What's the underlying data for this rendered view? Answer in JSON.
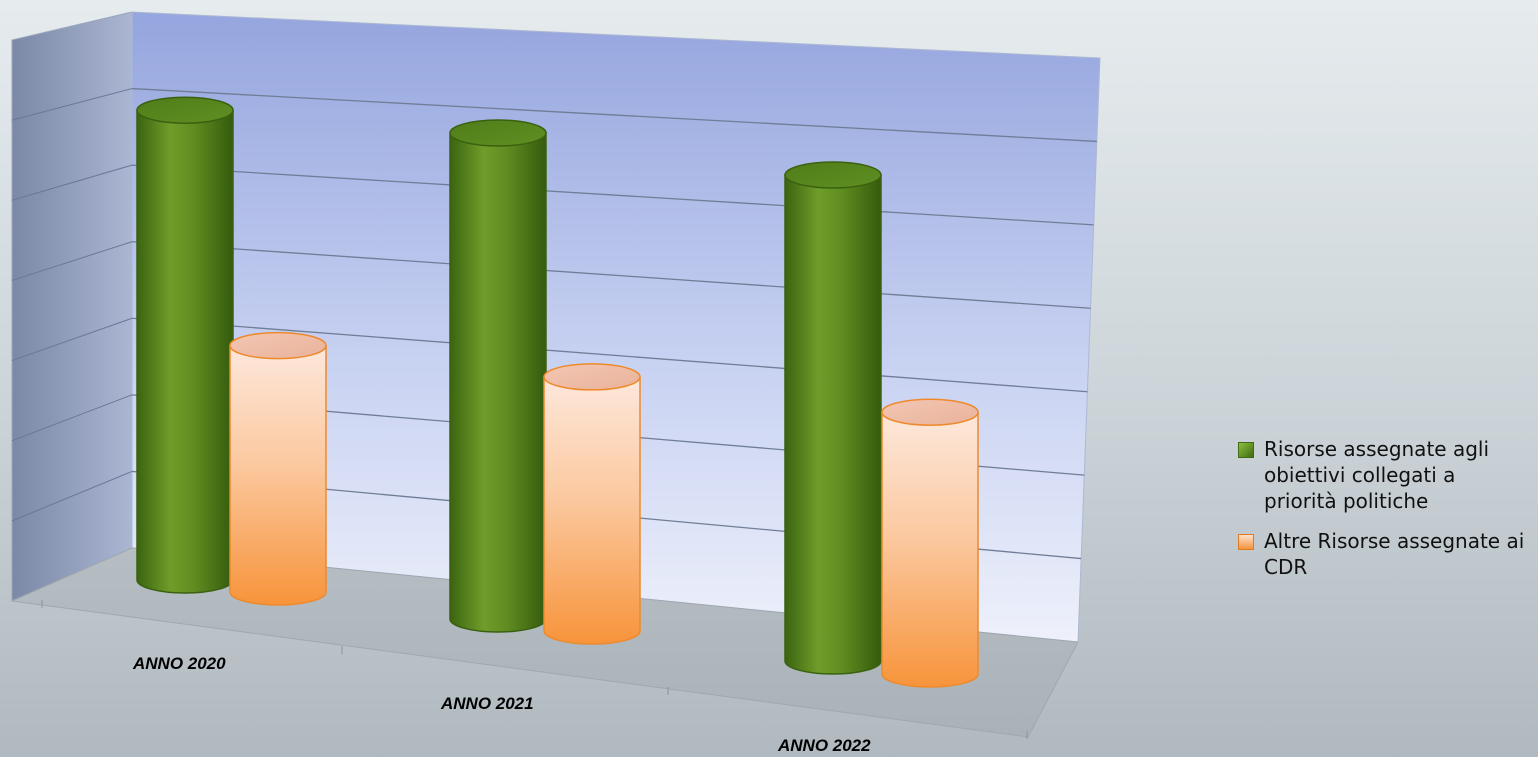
{
  "chart_data": {
    "type": "bar",
    "categories": [
      "ANNO 2020",
      "ANNO 2021",
      "ANNO 2022"
    ],
    "series": [
      {
        "name": "Risorse assegnate agli obiettivi collegati a priorità politiche",
        "color": "#5f8f22",
        "values": [
          5.8,
          6.0,
          6.0
        ]
      },
      {
        "name": "Altre Risorse assegnate ai CDR",
        "color": "#f5a14a",
        "values": [
          3.2,
          3.3,
          3.4
        ]
      }
    ],
    "ylim": [
      0,
      7
    ],
    "grid": true,
    "legend_position": "right",
    "title": "",
    "xlabel": "",
    "ylabel": ""
  }
}
